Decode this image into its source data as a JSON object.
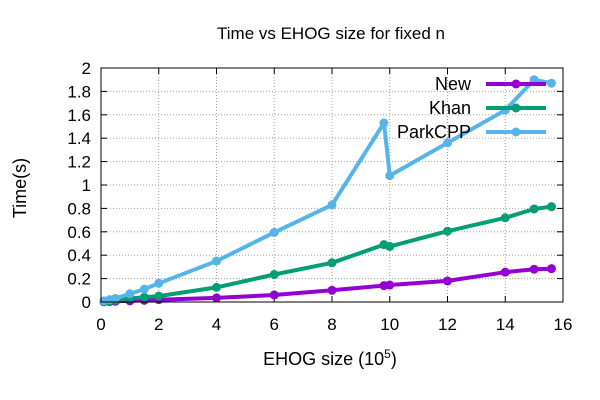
{
  "chart_data": {
    "type": "line",
    "title": "Time vs EHOG size for fixed n",
    "xlabel_main": "EHOG size (10",
    "xlabel_sup": "5",
    "xlabel_tail": ")",
    "ylabel": "Time(s)",
    "xlim": [
      0,
      16
    ],
    "ylim": [
      0,
      2
    ],
    "xticks": [
      0,
      2,
      4,
      6,
      8,
      10,
      12,
      14,
      16
    ],
    "xtick_labels": [
      "0",
      "2",
      "4",
      "6",
      "8",
      "10",
      "12",
      "14",
      "16"
    ],
    "yticks": [
      0,
      0.2,
      0.4,
      0.6,
      0.8,
      1,
      1.2,
      1.4,
      1.6,
      1.8,
      2
    ],
    "ytick_labels": [
      "0",
      "0.2",
      "0.4",
      "0.6",
      "0.8",
      "1",
      "1.2",
      "1.4",
      "1.6",
      "1.8",
      "2"
    ],
    "grid": true,
    "legend_position": "top-right",
    "series": [
      {
        "name": "New",
        "color": "#9400d3",
        "points": [
          [
            0.1,
            0.002
          ],
          [
            0.3,
            0.004
          ],
          [
            0.5,
            0.006
          ],
          [
            1.0,
            0.01
          ],
          [
            1.5,
            0.014
          ],
          [
            2.0,
            0.02
          ],
          [
            4.0,
            0.035
          ],
          [
            6.0,
            0.06
          ],
          [
            8.0,
            0.1
          ],
          [
            9.8,
            0.14
          ],
          [
            10.0,
            0.145
          ],
          [
            12.0,
            0.18
          ],
          [
            14.0,
            0.255
          ],
          [
            15.0,
            0.28
          ],
          [
            15.6,
            0.285
          ]
        ]
      },
      {
        "name": "Khan",
        "color": "#009e73",
        "points": [
          [
            0.1,
            0.005
          ],
          [
            0.3,
            0.01
          ],
          [
            0.5,
            0.015
          ],
          [
            1.0,
            0.03
          ],
          [
            1.5,
            0.04
          ],
          [
            2.0,
            0.05
          ],
          [
            4.0,
            0.125
          ],
          [
            6.0,
            0.235
          ],
          [
            8.0,
            0.335
          ],
          [
            9.8,
            0.49
          ],
          [
            10.0,
            0.475
          ],
          [
            12.0,
            0.605
          ],
          [
            14.0,
            0.72
          ],
          [
            15.0,
            0.795
          ],
          [
            15.6,
            0.815
          ]
        ]
      },
      {
        "name": "ParkCPP",
        "color": "#56b4e9",
        "points": [
          [
            0.1,
            0.01
          ],
          [
            0.3,
            0.02
          ],
          [
            0.5,
            0.03
          ],
          [
            1.0,
            0.07
          ],
          [
            1.5,
            0.11
          ],
          [
            2.0,
            0.16
          ],
          [
            4.0,
            0.35
          ],
          [
            6.0,
            0.595
          ],
          [
            8.0,
            0.83
          ],
          [
            9.8,
            1.53
          ],
          [
            10.0,
            1.08
          ],
          [
            12.0,
            1.36
          ],
          [
            14.0,
            1.64
          ],
          [
            15.0,
            1.9
          ],
          [
            15.6,
            1.87
          ]
        ]
      }
    ]
  }
}
